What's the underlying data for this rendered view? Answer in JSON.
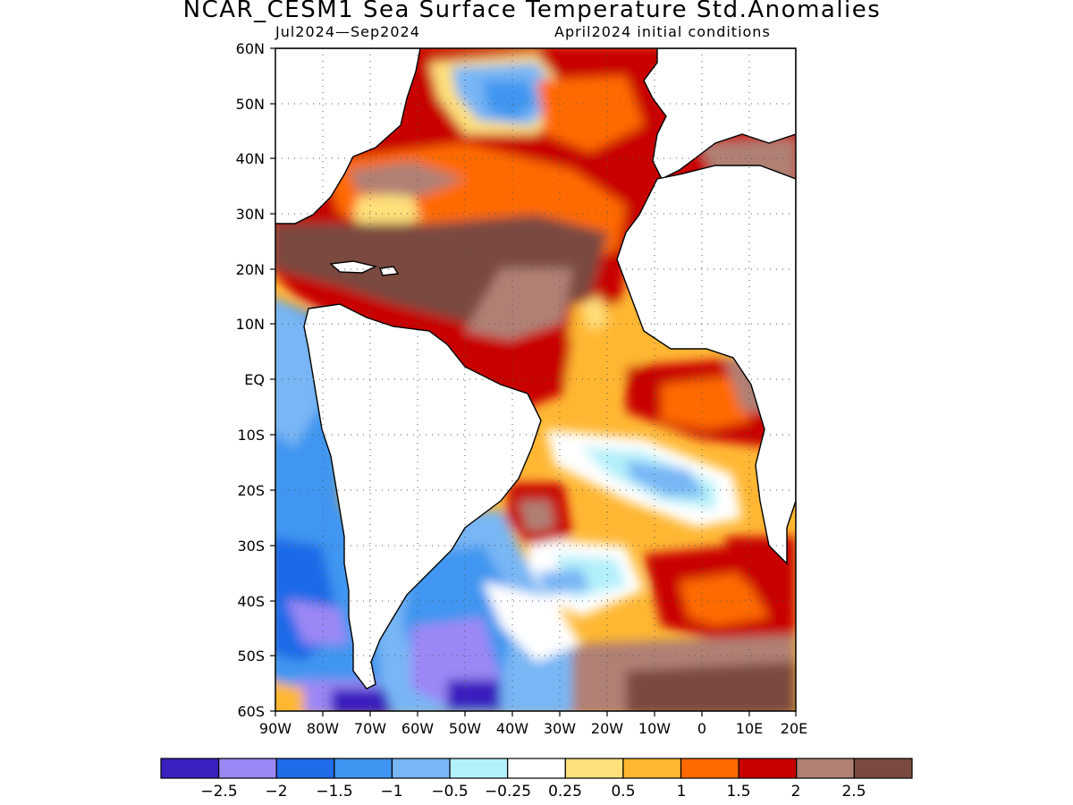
{
  "figure": {
    "title": "NCAR_CESM1 Sea Surface Temperature Std.Anomalies",
    "period": "Jul2024—Sep2024",
    "init": "April2024 initial conditions"
  },
  "map": {
    "lat_labels": [
      "60N",
      "50N",
      "40N",
      "30N",
      "20N",
      "10N",
      "EQ",
      "10S",
      "20S",
      "30S",
      "40S",
      "50S",
      "60S"
    ],
    "lon_labels": [
      "90W",
      "80W",
      "70W",
      "60W",
      "50W",
      "40W",
      "30W",
      "20W",
      "10W",
      "0",
      "10E",
      "20E"
    ],
    "lat_range": [
      -60,
      60
    ],
    "lon_range": [
      -90,
      20
    ],
    "grid": "dotted"
  },
  "colorbar": {
    "colors": [
      "#3b1fbf",
      "#9b87f5",
      "#1f6be8",
      "#3f96f0",
      "#78b6f5",
      "#b3f0fa",
      "#ffffff",
      "#ffe07a",
      "#ffb733",
      "#ff6a00",
      "#c80000",
      "#b08074",
      "#7a4a40"
    ],
    "labels": [
      "−2.5",
      "−2",
      "−1.5",
      "−1",
      "−0.5",
      "−0.25",
      "0.25",
      "0.5",
      "1",
      "1.5",
      "2",
      "2.5"
    ]
  }
}
